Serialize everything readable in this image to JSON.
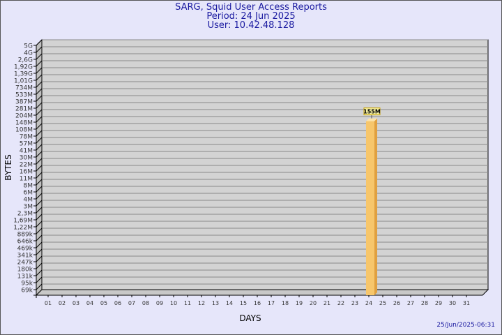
{
  "chart_data": {
    "type": "bar",
    "title": "SARG, Squid User Access Reports",
    "subtitle": [
      "Period: 24 Jun 2025",
      "User: 10.42.48.128"
    ],
    "xlabel": "DAYS",
    "ylabel": "BYTES",
    "y_scale": "log",
    "y_tick_labels": [
      "5G",
      "4G",
      "2,6G",
      "1,92G",
      "1,39G",
      "1,01G",
      "734M",
      "533M",
      "387M",
      "281M",
      "204M",
      "148M",
      "108M",
      "78M",
      "57M",
      "41M",
      "30M",
      "22M",
      "16M",
      "11M",
      "8M",
      "6M",
      "4M",
      "3M",
      "2,3M",
      "1,69M",
      "1,22M",
      "889k",
      "646k",
      "469k",
      "341k",
      "247k",
      "180k",
      "131k",
      "95k",
      "69k"
    ],
    "categories": [
      "01",
      "02",
      "03",
      "04",
      "05",
      "06",
      "07",
      "08",
      "09",
      "10",
      "11",
      "12",
      "13",
      "14",
      "15",
      "16",
      "17",
      "18",
      "19",
      "20",
      "21",
      "22",
      "23",
      "24",
      "25",
      "26",
      "27",
      "28",
      "29",
      "30",
      "31"
    ],
    "bars": [
      {
        "day": "24",
        "value_label": "155M",
        "value_bytes": 155000000
      }
    ],
    "grid": true,
    "colors": {
      "bar": "#f7c66b",
      "bar_side": "#e0a040",
      "plot_bg": "#d3d3d3",
      "background": "#e6e6fa",
      "title": "#1a1aa0"
    }
  },
  "timestamp": "25/Jun/2025-06:31"
}
